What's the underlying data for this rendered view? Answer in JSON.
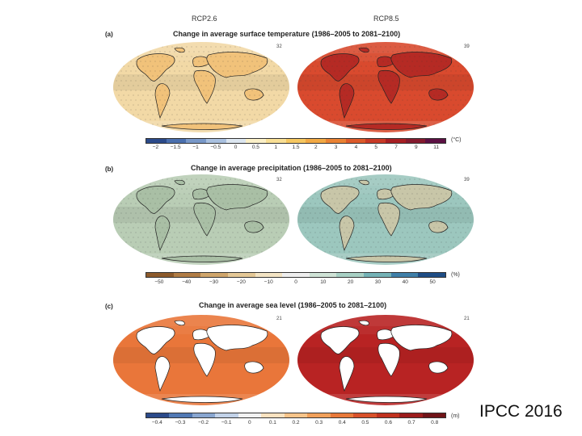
{
  "scenarios": {
    "left": "RCP2.6",
    "right": "RCP8.5"
  },
  "panels": [
    {
      "label": "(a)",
      "title": "Change in average surface temperature (1986–2005 to 2081–2100)",
      "count_left": "32",
      "count_right": "39",
      "unit": "(°C)",
      "ticks": [
        "−2",
        "−1.5",
        "−1",
        "−0.5",
        "0",
        "0.5",
        "1",
        "1.5",
        "2",
        "3",
        "4",
        "5",
        "7",
        "9",
        "11"
      ],
      "colors": [
        "#2b4a8a",
        "#4a6fae",
        "#7898c8",
        "#a9c0df",
        "#dce6f0",
        "#fbf0c8",
        "#f9df95",
        "#f6c760",
        "#f2a944",
        "#ea8233",
        "#dc5a2a",
        "#c83a26",
        "#a71f23",
        "#841a2e",
        "#5c1043"
      ],
      "ocean_left": "#f2d9a6",
      "land_left": "#f1c27a",
      "ocean_right": "#d94a2e",
      "land_right": "#b52a24"
    },
    {
      "label": "(b)",
      "title": "Change in average precipitation (1986–2005 to 2081–2100)",
      "count_left": "32",
      "count_right": "39",
      "unit": "(%)",
      "ticks": [
        "−50",
        "−40",
        "−30",
        "−20",
        "−10",
        "0",
        "10",
        "20",
        "30",
        "40",
        "50"
      ],
      "colors": [
        "#8c5a2b",
        "#b07c45",
        "#cfa56b",
        "#e4c896",
        "#f3e4c4",
        "#eeeeee",
        "#cfe3d6",
        "#a7d0c4",
        "#74b2b6",
        "#3f7fa8",
        "#1f4d85"
      ],
      "ocean_left": "#b9cdb5",
      "land_left": "#a9bfa5",
      "ocean_right": "#9cc7be",
      "land_right": "#c8c6a8"
    },
    {
      "label": "(c)",
      "title": "Change in average sea level (1986–2005 to 2081–2100)",
      "count_left": "21",
      "count_right": "21",
      "unit": "(m)",
      "ticks": [
        "−0.4",
        "−0.3",
        "−0.2",
        "−0.1",
        "0",
        "0.1",
        "0.2",
        "0.3",
        "0.4",
        "0.5",
        "0.6",
        "0.7",
        "0.8"
      ],
      "colors": [
        "#2b4a8a",
        "#5179b4",
        "#89a6d0",
        "#c2d2e8",
        "#f2f2f2",
        "#fbe2c0",
        "#f7c48a",
        "#f1a05a",
        "#e8793a",
        "#d8512a",
        "#c0321f",
        "#9c1c1c",
        "#701418"
      ],
      "ocean_left": "#e9763a",
      "land_left": "#ffffff",
      "ocean_right": "#b82323",
      "land_right": "#ffffff"
    }
  ],
  "credit": "IPCC 2016"
}
